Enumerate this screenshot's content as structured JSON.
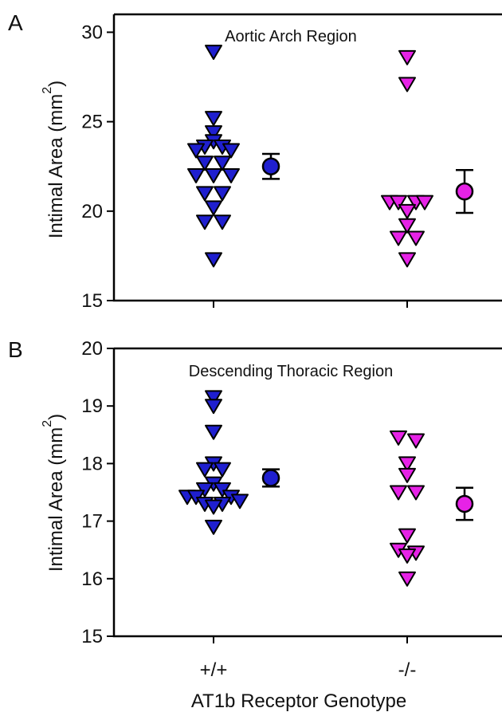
{
  "figure": {
    "xlabel": "AT1b Receptor Genotype",
    "categories": [
      "+/+",
      "-/-"
    ],
    "colors": {
      "wt": "#1f1fcf",
      "ko": "#e622e6",
      "outline": "#000000"
    }
  },
  "chart_data": [
    {
      "type": "scatter",
      "panel_letter": "A",
      "title": "Aortic Arch Region",
      "ylabel_main": "Intimal Area (mm",
      "ylabel_sup": "2",
      "ylabel_end": ")",
      "categories": [
        "+/+",
        "-/-"
      ],
      "ylim": [
        15,
        31
      ],
      "yticks": [
        "15",
        "20",
        "25",
        "30"
      ],
      "series": [
        {
          "category": "+/+",
          "color": "#1f1fcf",
          "points": [
            {
              "dx": 0,
              "y": 28.9
            },
            {
              "dx": 0,
              "y": 25.2
            },
            {
              "dx": 0,
              "y": 24.4
            },
            {
              "dx": 0,
              "y": 23.9
            },
            {
              "dx": -1,
              "y": 23.6
            },
            {
              "dx": 1,
              "y": 23.6
            },
            {
              "dx": -2,
              "y": 23.4
            },
            {
              "dx": 2,
              "y": 23.4
            },
            {
              "dx": -1,
              "y": 22.7
            },
            {
              "dx": 1,
              "y": 22.7
            },
            {
              "dx": -2,
              "y": 22.0
            },
            {
              "dx": 0,
              "y": 22.0
            },
            {
              "dx": 2,
              "y": 22.0
            },
            {
              "dx": -1,
              "y": 21.0
            },
            {
              "dx": 1,
              "y": 21.0
            },
            {
              "dx": 0,
              "y": 20.2
            },
            {
              "dx": -1,
              "y": 19.4
            },
            {
              "dx": 1,
              "y": 19.4
            },
            {
              "dx": 0,
              "y": 17.3
            }
          ],
          "mean": 22.5,
          "sem": 0.7
        },
        {
          "category": "-/-",
          "color": "#e622e6",
          "points": [
            {
              "dx": 0,
              "y": 28.6
            },
            {
              "dx": 0,
              "y": 27.1
            },
            {
              "dx": -2,
              "y": 20.5
            },
            {
              "dx": -1,
              "y": 20.5
            },
            {
              "dx": 1,
              "y": 20.5
            },
            {
              "dx": 2,
              "y": 20.5
            },
            {
              "dx": 0,
              "y": 20.0
            },
            {
              "dx": 0,
              "y": 19.2
            },
            {
              "dx": -1,
              "y": 18.5
            },
            {
              "dx": 1,
              "y": 18.5
            },
            {
              "dx": 0,
              "y": 17.3
            }
          ],
          "mean": 21.1,
          "sem": 1.2
        }
      ]
    },
    {
      "type": "scatter",
      "panel_letter": "B",
      "title": "Descending Thoracic Region",
      "ylabel_main": "Intimal Area (mm",
      "ylabel_sup": "2",
      "ylabel_end": ")",
      "categories": [
        "+/+",
        "-/-"
      ],
      "ylim": [
        15,
        20
      ],
      "yticks": [
        "15",
        "16",
        "17",
        "18",
        "19",
        "20"
      ],
      "series": [
        {
          "category": "+/+",
          "color": "#1f1fcf",
          "points": [
            {
              "dx": 0,
              "y": 19.15
            },
            {
              "dx": 0,
              "y": 19.0
            },
            {
              "dx": 0,
              "y": 18.55
            },
            {
              "dx": 0,
              "y": 18.0
            },
            {
              "dx": -1,
              "y": 17.9
            },
            {
              "dx": 1,
              "y": 17.9
            },
            {
              "dx": 0,
              "y": 17.65
            },
            {
              "dx": -1,
              "y": 17.55
            },
            {
              "dx": 1,
              "y": 17.55
            },
            {
              "dx": -3,
              "y": 17.42
            },
            {
              "dx": -2,
              "y": 17.42
            },
            {
              "dx": 2,
              "y": 17.42
            },
            {
              "dx": 3,
              "y": 17.35
            },
            {
              "dx": -1,
              "y": 17.3
            },
            {
              "dx": 1,
              "y": 17.3
            },
            {
              "dx": 0,
              "y": 17.25
            },
            {
              "dx": 0,
              "y": 16.9
            }
          ],
          "mean": 17.75,
          "sem": 0.15
        },
        {
          "category": "-/-",
          "color": "#e622e6",
          "points": [
            {
              "dx": -1,
              "y": 18.45
            },
            {
              "dx": 1,
              "y": 18.4
            },
            {
              "dx": 0,
              "y": 18.0
            },
            {
              "dx": 0,
              "y": 17.8
            },
            {
              "dx": -1,
              "y": 17.5
            },
            {
              "dx": 1,
              "y": 17.5
            },
            {
              "dx": 0,
              "y": 16.75
            },
            {
              "dx": -1,
              "y": 16.5
            },
            {
              "dx": 1,
              "y": 16.45
            },
            {
              "dx": 0,
              "y": 16.4
            },
            {
              "dx": 0,
              "y": 16.0
            }
          ],
          "mean": 17.3,
          "sem": 0.28
        }
      ]
    }
  ]
}
